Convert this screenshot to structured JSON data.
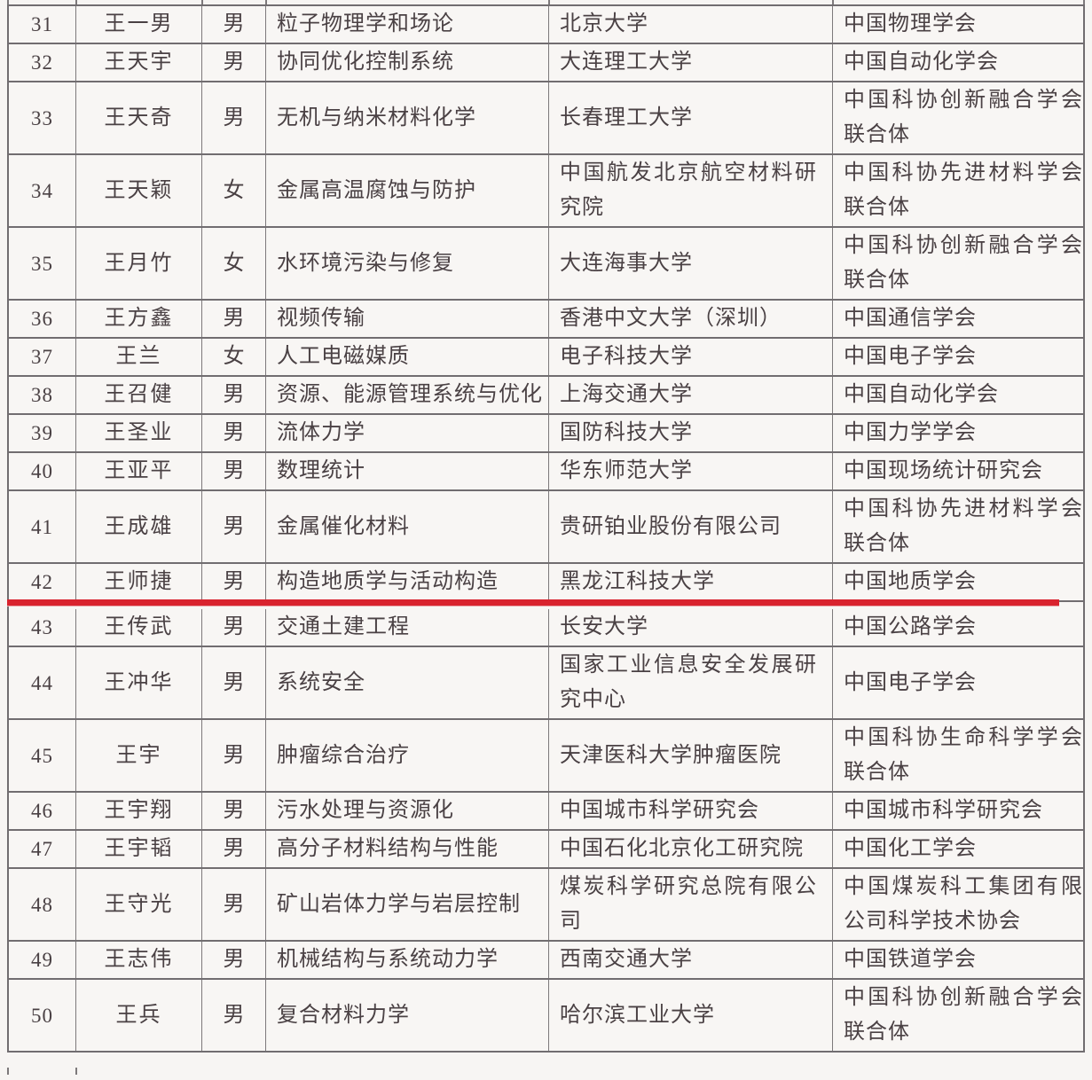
{
  "page": {
    "background_color": "#f7f5f3",
    "text_color": "#4a4144",
    "border_color": "#716d70",
    "highlight": {
      "type": "red-underline",
      "color": "#d9232e",
      "marked_row_no": "42"
    }
  },
  "table": {
    "rows": [
      {
        "no": "31",
        "name": "王一男",
        "gender": "男",
        "field": "粒子物理学和场论",
        "institution": "北京大学",
        "society": "中国物理学会"
      },
      {
        "no": "32",
        "name": "王天宇",
        "gender": "男",
        "field": "协同优化控制系统",
        "institution": "大连理工大学",
        "society": "中国自动化学会"
      },
      {
        "no": "33",
        "name": "王天奇",
        "gender": "男",
        "field": "无机与纳米材料化学",
        "institution": "长春理工大学",
        "society": "中国科协创新融合学会联合体"
      },
      {
        "no": "34",
        "name": "王天颖",
        "gender": "女",
        "field": "金属高温腐蚀与防护",
        "institution": "中国航发北京航空材料研究院",
        "society": "中国科协先进材料学会联合体"
      },
      {
        "no": "35",
        "name": "王月竹",
        "gender": "女",
        "field": "水环境污染与修复",
        "institution": "大连海事大学",
        "society": "中国科协创新融合学会联合体"
      },
      {
        "no": "36",
        "name": "王方鑫",
        "gender": "男",
        "field": "视频传输",
        "institution": "香港中文大学（深圳）",
        "society": "中国通信学会"
      },
      {
        "no": "37",
        "name": "王兰",
        "gender": "女",
        "field": "人工电磁媒质",
        "institution": "电子科技大学",
        "society": "中国电子学会"
      },
      {
        "no": "38",
        "name": "王召健",
        "gender": "男",
        "field": "资源、能源管理系统与优化",
        "institution": "上海交通大学",
        "society": "中国自动化学会"
      },
      {
        "no": "39",
        "name": "王圣业",
        "gender": "男",
        "field": "流体力学",
        "institution": "国防科技大学",
        "society": "中国力学学会"
      },
      {
        "no": "40",
        "name": "王亚平",
        "gender": "男",
        "field": "数理统计",
        "institution": "华东师范大学",
        "society": "中国现场统计研究会"
      },
      {
        "no": "41",
        "name": "王成雄",
        "gender": "男",
        "field": "金属催化材料",
        "institution": "贵研铂业股份有限公司",
        "society": "中国科协先进材料学会联合体"
      },
      {
        "no": "42",
        "name": "王师捷",
        "gender": "男",
        "field": "构造地质学与活动构造",
        "institution": "黑龙江科技大学",
        "society": "中国地质学会",
        "highlighted": true
      },
      {
        "no": "43",
        "name": "王传武",
        "gender": "男",
        "field": "交通土建工程",
        "institution": "长安大学",
        "society": "中国公路学会"
      },
      {
        "no": "44",
        "name": "王冲华",
        "gender": "男",
        "field": "系统安全",
        "institution": "国家工业信息安全发展研究中心",
        "society": "中国电子学会"
      },
      {
        "no": "45",
        "name": "王宇",
        "gender": "男",
        "field": "肿瘤综合治疗",
        "institution": "天津医科大学肿瘤医院",
        "society": "中国科协生命科学学会联合体"
      },
      {
        "no": "46",
        "name": "王宇翔",
        "gender": "男",
        "field": "污水处理与资源化",
        "institution": "中国城市科学研究会",
        "society": "中国城市科学研究会"
      },
      {
        "no": "47",
        "name": "王宇韬",
        "gender": "男",
        "field": "高分子材料结构与性能",
        "institution": "中国石化北京化工研究院",
        "society": "中国化工学会"
      },
      {
        "no": "48",
        "name": "王守光",
        "gender": "男",
        "field": "矿山岩体力学与岩层控制",
        "institution": "煤炭科学研究总院有限公司",
        "society": "中国煤炭科工集团有限公司科学技术协会"
      },
      {
        "no": "49",
        "name": "王志伟",
        "gender": "男",
        "field": "机械结构与系统动力学",
        "institution": "西南交通大学",
        "society": "中国铁道学会"
      },
      {
        "no": "50",
        "name": "王兵",
        "gender": "男",
        "field": "复合材料力学",
        "institution": "哈尔滨工业大学",
        "society": "中国科协创新融合学会联合体"
      }
    ]
  }
}
